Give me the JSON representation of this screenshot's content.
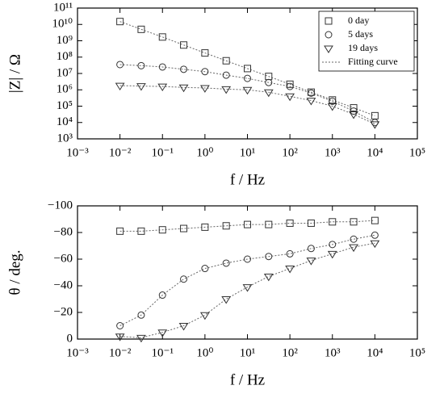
{
  "chart_data": [
    {
      "type": "scatter",
      "xscale": "log",
      "yscale": "log",
      "legend": "upper right",
      "xlabel": "f / Hz",
      "ylabel": "|Z| / Ω",
      "xlim": [
        0.001,
        100000
      ],
      "xticks": [
        {
          "value": 0.001,
          "label": "10⁻³"
        },
        {
          "value": 0.01,
          "label": "10⁻²"
        },
        {
          "value": 0.1,
          "label": "10⁻¹"
        },
        {
          "value": 1,
          "label": "10⁰"
        },
        {
          "value": 10,
          "label": "10¹"
        },
        {
          "value": 100,
          "label": "10²"
        },
        {
          "value": 1000,
          "label": "10³"
        },
        {
          "value": 10000,
          "label": "10⁴"
        },
        {
          "value": 100000,
          "label": "10⁵"
        }
      ],
      "ylim": [
        1000,
        100000000000
      ],
      "yticks": [
        {
          "value": 1000,
          "label": "10³"
        },
        {
          "value": 10000,
          "label": "10⁴"
        },
        {
          "value": 100000,
          "label": "10⁵"
        },
        {
          "value": 1000000,
          "label": "10⁶"
        },
        {
          "value": 10000000,
          "label": "10⁷"
        },
        {
          "value": 100000000,
          "label": "10⁸"
        },
        {
          "value": 1000000000,
          "label": "10⁹"
        },
        {
          "value": 10000000000,
          "label": "10¹⁰"
        },
        {
          "value": 100000000000,
          "label": "10¹¹"
        }
      ],
      "x": [
        0.01,
        0.0316,
        0.1,
        0.316,
        1,
        3.16,
        10,
        31.6,
        100,
        316,
        1000,
        3160,
        10000
      ],
      "series": [
        {
          "name": "0 day",
          "marker": "square",
          "color": "#333333",
          "values": [
            15000000000.0,
            5000000000.0,
            1700000000.0,
            550000000.0,
            180000000.0,
            60000000.0,
            20000000.0,
            6600000.0,
            2200000.0,
            720000.0,
            240000.0,
            79000.0,
            26000.0
          ]
        },
        {
          "name": "5 days",
          "marker": "circle",
          "color": "#333333",
          "values": [
            35000000.0,
            30000000.0,
            25000000.0,
            18000000.0,
            13000000.0,
            7900000.0,
            5000000.0,
            2800000.0,
            1600000.0,
            630000.0,
            200000.0,
            50000.0,
            10000.0
          ]
        },
        {
          "name": "19 days",
          "marker": "triangle_down",
          "color": "#333333",
          "values": [
            1800000.0,
            1700000.0,
            1600000.0,
            1400000.0,
            1300000.0,
            1100000.0,
            1000000.0,
            710000.0,
            400000.0,
            220000.0,
            100000.0,
            32000.0,
            7900.0
          ]
        }
      ],
      "fit": {
        "name": "Fitting curve",
        "color": "#666666",
        "values": [
          [
            15000000000.0,
            5000000000.0,
            1700000000.0,
            550000000.0,
            180000000.0,
            60000000.0,
            20000000.0,
            6600000.0,
            2200000.0,
            720000.0,
            240000.0,
            79000.0,
            26000.0
          ],
          [
            35000000.0,
            30000000.0,
            25000000.0,
            18000000.0,
            13000000.0,
            7900000.0,
            5000000.0,
            2800000.0,
            1600000.0,
            630000.0,
            200000.0,
            50000.0,
            10000.0
          ],
          [
            1800000.0,
            1700000.0,
            1600000.0,
            1400000.0,
            1300000.0,
            1100000.0,
            1000000.0,
            710000.0,
            400000.0,
            220000.0,
            100000.0,
            32000.0,
            7900.0
          ]
        ]
      }
    },
    {
      "type": "scatter",
      "xscale": "log",
      "yscale": "linear",
      "xlabel": "f / Hz",
      "ylabel": "θ / deg.",
      "xlim": [
        0.001,
        100000
      ],
      "xticks": [
        {
          "value": 0.001,
          "label": "10⁻³"
        },
        {
          "value": 0.01,
          "label": "10⁻²"
        },
        {
          "value": 0.1,
          "label": "10⁻¹"
        },
        {
          "value": 1,
          "label": "10⁰"
        },
        {
          "value": 10,
          "label": "10¹"
        },
        {
          "value": 100,
          "label": "10²"
        },
        {
          "value": 1000,
          "label": "10³"
        },
        {
          "value": 10000,
          "label": "10⁴"
        },
        {
          "value": 100000,
          "label": "10⁵"
        }
      ],
      "ylim": [
        0,
        -100
      ],
      "yticks": [
        {
          "value": -100,
          "label": "−100"
        },
        {
          "value": -80,
          "label": "−80"
        },
        {
          "value": -60,
          "label": "−60"
        },
        {
          "value": -40,
          "label": "−40"
        },
        {
          "value": -20,
          "label": "−20"
        },
        0
      ],
      "x": [
        0.01,
        0.0316,
        0.1,
        0.316,
        1,
        3.16,
        10,
        31.6,
        100,
        316,
        1000,
        3160,
        10000
      ],
      "series": [
        {
          "marker": "square",
          "color": "#333333",
          "values": [
            -81,
            -81,
            -82,
            -83,
            -84,
            -85,
            -86,
            -86,
            -87,
            -87,
            -88,
            -88,
            -89
          ]
        },
        {
          "marker": "circle",
          "color": "#333333",
          "values": [
            -10,
            -18,
            -33,
            -45,
            -53,
            -57,
            -60,
            -62,
            -64,
            -68,
            -71,
            -75,
            -78
          ]
        },
        {
          "marker": "triangle_down",
          "color": "#333333",
          "values": [
            -2,
            -1,
            -5,
            -10,
            -18,
            -30,
            -39,
            -47,
            -53,
            -59,
            -64,
            -69,
            -72
          ]
        }
      ],
      "fit": {
        "color": "#666666",
        "values": [
          [
            -81,
            -81,
            -82,
            -83,
            -84,
            -85,
            -86,
            -86,
            -87,
            -87,
            -88,
            -88,
            -89
          ],
          [
            -10,
            -18,
            -33,
            -45,
            -53,
            -57,
            -60,
            -62,
            -64,
            -68,
            -71,
            -75,
            -78
          ],
          [
            -2,
            -1,
            -5,
            -10,
            -18,
            -30,
            -39,
            -47,
            -53,
            -59,
            -64,
            -69,
            -72
          ]
        ]
      }
    }
  ]
}
